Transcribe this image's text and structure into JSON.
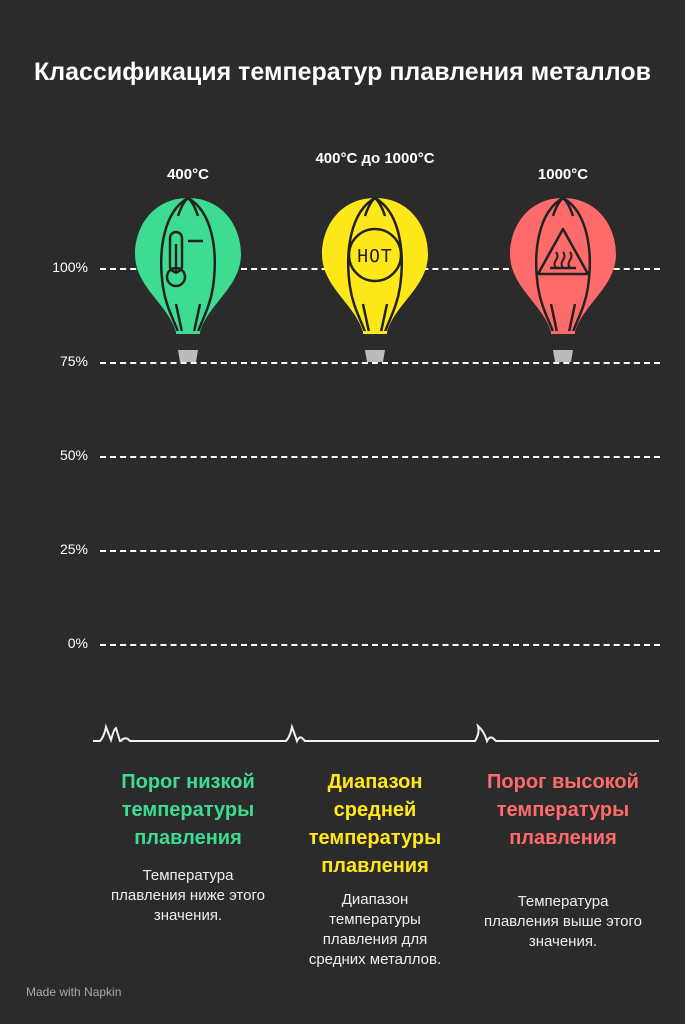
{
  "title": "Классификация температур плавления металлов",
  "axis_labels": [
    "100%",
    "75%",
    "50%",
    "25%",
    "0%"
  ],
  "items": [
    {
      "value_label": "400°C",
      "icon": "thermometer-icon",
      "color": "#3ddc91",
      "heading": "Порог низкой температуры плавления",
      "description": "Температура плавления ниже этого значения."
    },
    {
      "value_label": "400°C до 1000°C",
      "icon": "hot-badge-icon",
      "color": "#ffe81a",
      "heading": "Диапазон средней температуры плавления",
      "description": "Диапазон температуры плавления для средних металлов."
    },
    {
      "value_label": "1000°C",
      "icon": "hot-surface-warning-icon",
      "color": "#ff6b6b",
      "heading": "Порог высокой температуры плавления",
      "description": "Температура плавления выше этого значения."
    }
  ],
  "footer": "Made with Napkin"
}
